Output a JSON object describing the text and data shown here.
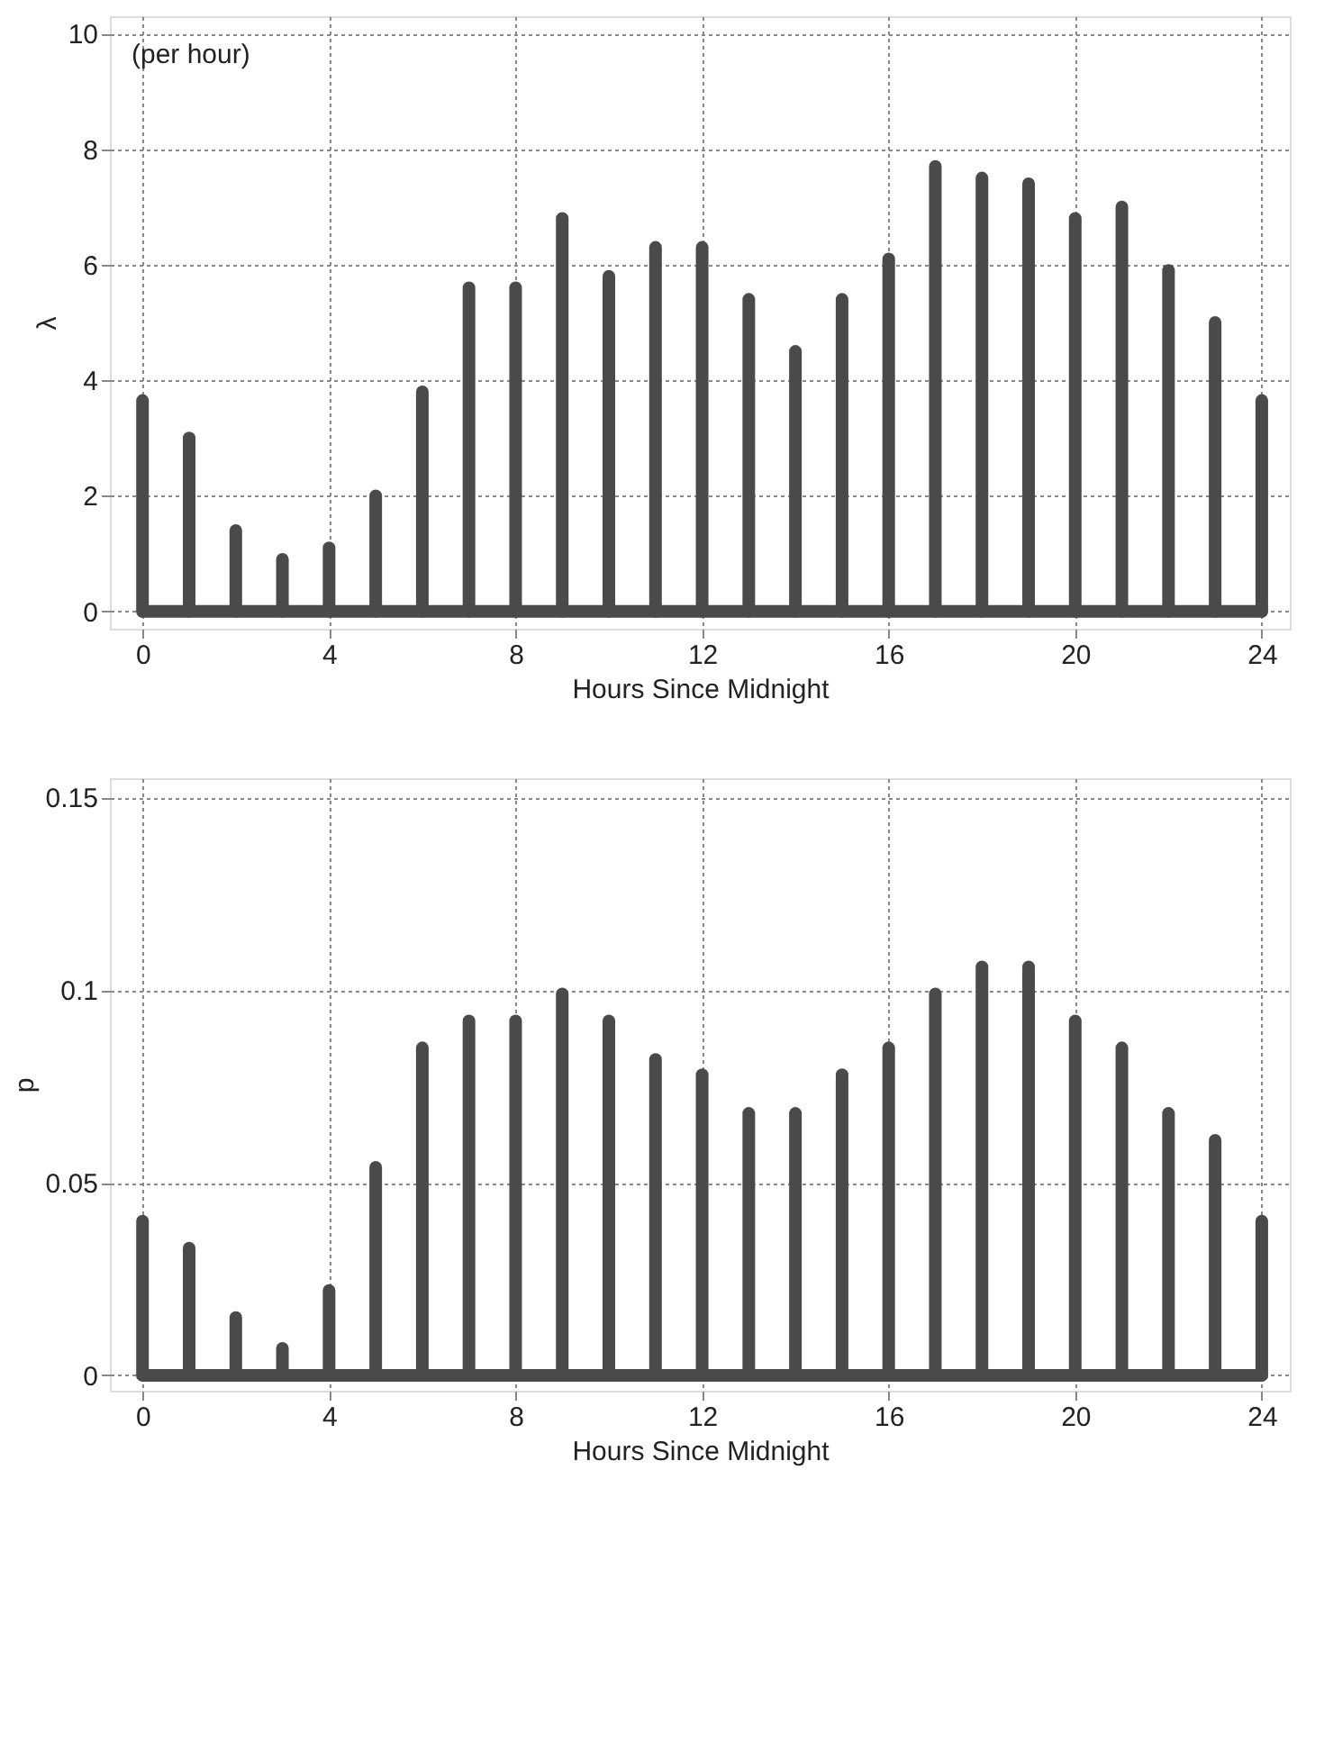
{
  "chart_data": [
    {
      "type": "bar",
      "xlabel": "Hours Since Midnight",
      "ylabel": "λ",
      "annotations": [
        "(per hour)"
      ],
      "x": [
        0,
        1,
        2,
        3,
        4,
        5,
        6,
        7,
        8,
        9,
        10,
        11,
        12,
        13,
        14,
        15,
        16,
        17,
        18,
        19,
        20,
        21,
        22,
        23,
        24
      ],
      "series": [
        {
          "color": "#4a4a4a",
          "values": [
            3.65,
            3.0,
            1.4,
            0.9,
            1.1,
            2.0,
            3.8,
            5.6,
            5.6,
            6.8,
            5.8,
            6.3,
            6.3,
            5.4,
            4.5,
            5.4,
            6.1,
            7.7,
            7.5,
            7.4,
            6.8,
            7.0,
            5.9,
            5.0,
            3.65
          ]
        }
      ],
      "xlim": [
        -0.7,
        24.6
      ],
      "xticks": [
        0,
        4,
        8,
        12,
        16,
        20,
        24
      ],
      "ylim": [
        -0.3,
        10.3
      ],
      "yticks": [
        0,
        2,
        4,
        6,
        8,
        10
      ],
      "ref_lines": [
        {
          "axis": "y",
          "value": 0,
          "color": "#4a4a4a"
        }
      ],
      "grid": true
    },
    {
      "type": "bar",
      "xlabel": "Hours Since Midnight",
      "ylabel": "p",
      "x": [
        0,
        1,
        2,
        3,
        4,
        5,
        6,
        7,
        8,
        9,
        10,
        11,
        12,
        13,
        14,
        15,
        16,
        17,
        18,
        19,
        20,
        21,
        22,
        23,
        24
      ],
      "series": [
        {
          "color": "#4a4a4a",
          "values": [
            0.04,
            0.033,
            0.015,
            0.007,
            0.022,
            0.054,
            0.085,
            0.092,
            0.092,
            0.099,
            0.092,
            0.082,
            0.078,
            0.068,
            0.068,
            0.078,
            0.085,
            0.099,
            0.106,
            0.106,
            0.092,
            0.085,
            0.068,
            0.061,
            0.04
          ]
        }
      ],
      "xlim": [
        -0.7,
        24.6
      ],
      "xticks": [
        0,
        4,
        8,
        12,
        16,
        20,
        24
      ],
      "ylim": [
        -0.004,
        0.155
      ],
      "yticks": [
        0,
        0.05,
        0.1,
        0.15
      ],
      "ref_lines": [
        {
          "axis": "y",
          "value": 0,
          "color": "#4a4a4a"
        }
      ],
      "grid": true
    }
  ]
}
